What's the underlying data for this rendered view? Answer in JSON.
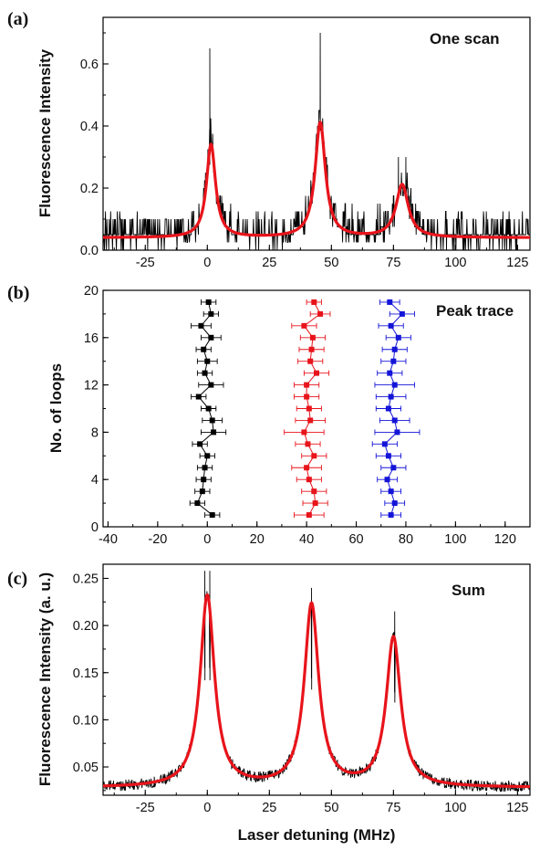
{
  "chart_data": [
    {
      "panel": "(a)",
      "type": "line",
      "annotation": "One scan",
      "xlabel": "",
      "ylabel": "Fluorescence Intensity",
      "xlim": [
        -42,
        130
      ],
      "ylim": [
        0,
        0.75
      ],
      "xticks": [
        -25,
        0,
        25,
        50,
        75,
        100,
        125
      ],
      "yticks": [
        0.0,
        0.2,
        0.4,
        0.6
      ],
      "ytick_labels": [
        "0.0",
        "0.2",
        "0.4",
        "0.6"
      ],
      "grid": false,
      "series": [
        {
          "kind": "raw",
          "color": "#000000",
          "noise_quantum": 0.05,
          "spikes": [
            [
              1.0,
              0.65
            ],
            [
              45.5,
              0.7
            ],
            [
              77.0,
              0.3
            ],
            [
              80.0,
              0.3
            ]
          ]
        },
        {
          "kind": "fit",
          "color": "#e8141b",
          "baseline": 0.04,
          "peaks": [
            {
              "center": 1.5,
              "height": 0.3,
              "width": 2.2
            },
            {
              "center": 45.5,
              "height": 0.37,
              "width": 2.5
            },
            {
              "center": 78.5,
              "height": 0.17,
              "width": 3.0
            }
          ]
        }
      ]
    },
    {
      "panel": "(b)",
      "type": "scatter",
      "annotation": "Peak trace",
      "xlabel": "",
      "ylabel": "No. of loops",
      "xlim": [
        -42,
        130
      ],
      "ylim": [
        0,
        20
      ],
      "xticks": [
        -40,
        -20,
        0,
        20,
        40,
        60,
        80,
        100,
        120
      ],
      "yticks": [
        0,
        4,
        8,
        12,
        16,
        20
      ],
      "grid": false,
      "y": [
        1,
        2,
        3,
        4,
        5,
        6,
        7,
        8,
        9,
        10,
        11,
        12,
        13,
        14,
        15,
        16,
        17,
        18,
        19
      ],
      "series": [
        {
          "color": "#000000",
          "x": [
            2.0,
            -4.0,
            -2.0,
            -1.5,
            -1.0,
            0.0,
            -3.0,
            2.5,
            2.0,
            0.5,
            -3.5,
            1.5,
            -1.0,
            0.0,
            -1.5,
            1.5,
            -2.5,
            1.5,
            0.5
          ],
          "xerr": [
            3,
            3,
            3,
            3,
            3,
            3,
            3,
            5,
            4,
            3,
            3,
            5,
            3,
            4,
            3,
            4,
            4,
            3,
            3
          ]
        },
        {
          "color": "#e8141b",
          "x": [
            41.0,
            43.5,
            43.0,
            41.0,
            40.0,
            43.0,
            40.5,
            39.0,
            41.5,
            41.0,
            40.0,
            40.0,
            44.0,
            41.5,
            42.0,
            42.5,
            39.0,
            45.5,
            43.0
          ],
          "xerr": [
            6,
            5,
            5,
            5,
            6,
            5,
            5,
            8,
            6,
            5,
            5,
            5,
            5,
            5,
            5,
            5,
            5,
            4,
            3
          ]
        },
        {
          "color": "#1414d8",
          "x": [
            74.0,
            75.5,
            74.0,
            72.5,
            75.0,
            73.0,
            71.5,
            76.5,
            75.5,
            73.0,
            74.0,
            75.5,
            73.5,
            75.0,
            75.5,
            77.0,
            74.0,
            78.5,
            73.5
          ],
          "xerr": [
            4,
            4,
            4,
            4,
            5,
            5,
            5,
            9,
            6,
            5,
            6,
            8,
            5,
            5,
            5,
            5,
            5,
            5,
            4
          ]
        }
      ]
    },
    {
      "panel": "(c)",
      "type": "line",
      "annotation": "Sum",
      "xlabel": "Laser detuning (MHz)",
      "ylabel": "Fluorescence Intensity (a. u.)",
      "xlim": [
        -42,
        130
      ],
      "ylim": [
        0.02,
        0.265
      ],
      "xticks": [
        -25,
        0,
        25,
        50,
        75,
        100,
        125
      ],
      "yticks": [
        0.05,
        0.1,
        0.15,
        0.2,
        0.25
      ],
      "ytick_labels": [
        "0.05",
        "0.10",
        "0.15",
        "0.20",
        "0.25"
      ],
      "grid": false,
      "series": [
        {
          "kind": "raw",
          "color": "#000000",
          "noise_amplitude": 0.006,
          "spikes": [
            [
              -1.0,
              0.258
            ],
            [
              1.0,
              0.258
            ],
            [
              42.0,
              0.24
            ],
            [
              75.5,
              0.215
            ]
          ]
        },
        {
          "kind": "fit",
          "color": "#e8141b",
          "baseline": 0.028,
          "peaks": [
            {
              "center": 0.0,
              "height": 0.203,
              "width": 3.5
            },
            {
              "center": 42.0,
              "height": 0.193,
              "width": 3.5
            },
            {
              "center": 75.0,
              "height": 0.158,
              "width": 3.5
            }
          ]
        }
      ]
    }
  ]
}
